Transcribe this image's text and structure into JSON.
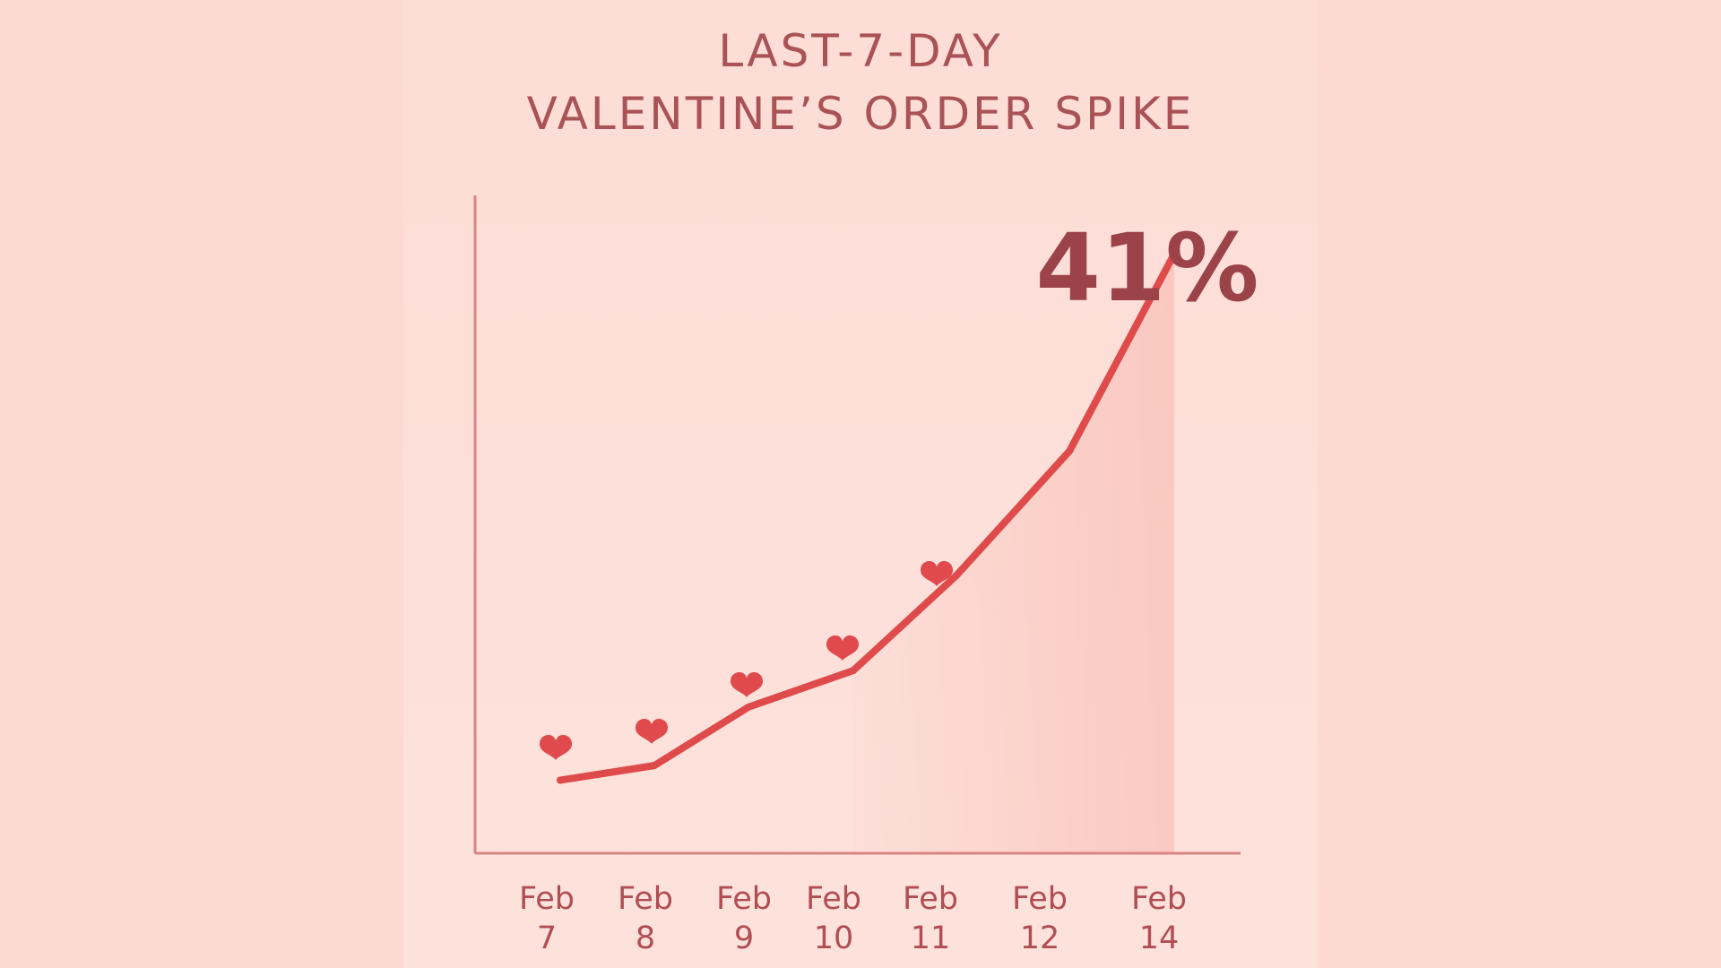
{
  "colors": {
    "background": "#fcd9d2",
    "title": "#a95357",
    "line": "#df4b4b",
    "heart": "#e04a4c",
    "axis": "#d98585",
    "peak_label": "#9b4348"
  },
  "chart_data": {
    "type": "line",
    "title_lines": [
      "LAST-7-DAY",
      "VALENTINE’S ORDER SPIKE"
    ],
    "categories": [
      [
        "Feb",
        "7"
      ],
      [
        "Feb",
        "8"
      ],
      [
        "Feb",
        "9"
      ],
      [
        "Feb",
        "10"
      ],
      [
        "Feb",
        "11"
      ],
      [
        "Feb",
        "12"
      ],
      [
        "Feb",
        "14"
      ]
    ],
    "series": [
      {
        "values": [
          5,
          6,
          10,
          12.5,
          19,
          27.5,
          41
        ]
      }
    ],
    "x_positions_days": [
      7,
      8,
      9,
      10,
      11,
      12,
      14
    ],
    "line_points": [
      {
        "x": "Feb 7",
        "y": 5
      },
      {
        "x": "Feb 8",
        "y": 6
      },
      {
        "x": "Feb 9",
        "y": 10
      },
      {
        "x": "Feb 10",
        "y": 12.5
      },
      {
        "x": "Feb 11",
        "y": 19
      },
      {
        "x": "Feb 12",
        "y": 27.5
      },
      {
        "x": "Feb 14",
        "y": 41
      }
    ],
    "hearts_on": [
      "Feb 7",
      "Feb 8",
      "Feb 9",
      "Feb 10",
      "Feb 11"
    ],
    "annotation": "41%",
    "ylim": [
      0,
      45
    ],
    "grid": false,
    "legend": "none"
  }
}
